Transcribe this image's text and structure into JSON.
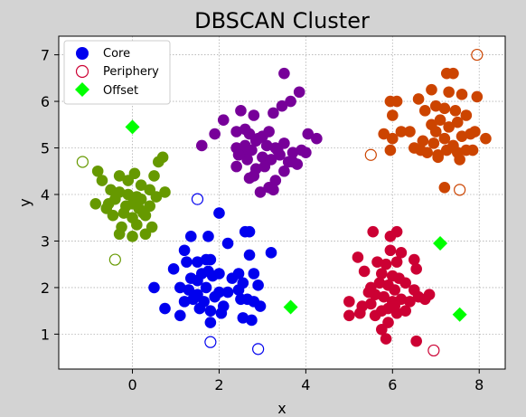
{
  "chart_data": {
    "type": "scatter",
    "title": "DBSCAN Cluster",
    "xlabel": "x",
    "ylabel": "y",
    "xlim": [
      -1.7,
      8.6
    ],
    "ylim": [
      0.25,
      7.4
    ],
    "xticks": [
      "0",
      "2",
      "4",
      "6",
      "8"
    ],
    "xtick_values": [
      0,
      2,
      4,
      6,
      8
    ],
    "yticks": [
      "1",
      "2",
      "3",
      "4",
      "5",
      "6",
      "7"
    ],
    "ytick_values": [
      1,
      2,
      3,
      4,
      5,
      6,
      7
    ],
    "grid": true,
    "legend_position": "top-left",
    "legend": [
      {
        "label": "Core",
        "marker": "filled-circle",
        "color": "#0000ee"
      },
      {
        "label": "Periphery",
        "marker": "hollow-circle",
        "color": "#cc0033"
      },
      {
        "label": "Offset",
        "marker": "diamond",
        "color": "#00ff00"
      }
    ],
    "clusters": [
      {
        "color": "#669900",
        "core": [
          [
            -0.8,
            4.5
          ],
          [
            -0.7,
            4.3
          ],
          [
            -0.5,
            4.1
          ],
          [
            -0.3,
            4.4
          ],
          [
            -0.1,
            4.3
          ],
          [
            0.05,
            4.45
          ],
          [
            0.2,
            4.2
          ],
          [
            0.4,
            4.1
          ],
          [
            0.5,
            4.4
          ],
          [
            0.6,
            4.7
          ],
          [
            0.7,
            4.8
          ],
          [
            0.75,
            4.05
          ],
          [
            -0.85,
            3.8
          ],
          [
            -0.6,
            3.7
          ],
          [
            -0.4,
            3.9
          ],
          [
            -0.2,
            3.6
          ],
          [
            0.0,
            3.8
          ],
          [
            0.15,
            3.7
          ],
          [
            0.3,
            3.55
          ],
          [
            0.45,
            3.3
          ],
          [
            0.3,
            3.15
          ],
          [
            0.0,
            3.1
          ],
          [
            -0.25,
            3.3
          ],
          [
            -0.3,
            3.15
          ],
          [
            -0.55,
            3.8
          ],
          [
            -0.1,
            4.0
          ],
          [
            0.1,
            3.95
          ],
          [
            -0.3,
            4.05
          ],
          [
            0.0,
            3.5
          ],
          [
            0.2,
            3.9
          ],
          [
            0.55,
            3.95
          ],
          [
            0.25,
            3.6
          ],
          [
            -0.15,
            3.75
          ],
          [
            0.4,
            3.75
          ],
          [
            -0.45,
            3.55
          ],
          [
            0.1,
            3.35
          ]
        ],
        "periphery": [
          [
            -1.15,
            4.7
          ],
          [
            -0.4,
            2.6
          ]
        ]
      },
      {
        "color": "#0000ee",
        "core": [
          [
            1.35,
            3.1
          ],
          [
            1.75,
            3.1
          ],
          [
            2.0,
            3.6
          ],
          [
            2.6,
            3.2
          ],
          [
            2.7,
            3.2
          ],
          [
            1.2,
            2.8
          ],
          [
            1.5,
            2.55
          ],
          [
            1.7,
            2.6
          ],
          [
            1.8,
            2.6
          ],
          [
            2.2,
            2.95
          ],
          [
            2.7,
            2.7
          ],
          [
            3.2,
            2.75
          ],
          [
            0.95,
            2.4
          ],
          [
            1.25,
            2.55
          ],
          [
            1.35,
            2.2
          ],
          [
            1.5,
            2.15
          ],
          [
            1.6,
            2.3
          ],
          [
            1.75,
            2.35
          ],
          [
            1.85,
            2.25
          ],
          [
            2.0,
            2.3
          ],
          [
            2.3,
            2.2
          ],
          [
            2.45,
            2.3
          ],
          [
            2.55,
            2.1
          ],
          [
            2.8,
            2.3
          ],
          [
            2.9,
            2.05
          ],
          [
            0.5,
            2.0
          ],
          [
            1.1,
            2.0
          ],
          [
            1.3,
            1.95
          ],
          [
            1.5,
            1.85
          ],
          [
            1.7,
            2.0
          ],
          [
            2.0,
            1.9
          ],
          [
            2.2,
            1.9
          ],
          [
            2.45,
            1.95
          ],
          [
            2.65,
            1.75
          ],
          [
            2.8,
            1.7
          ],
          [
            1.2,
            1.7
          ],
          [
            1.4,
            1.75
          ],
          [
            1.55,
            1.55
          ],
          [
            1.8,
            1.5
          ],
          [
            2.1,
            1.6
          ],
          [
            2.5,
            1.75
          ],
          [
            0.75,
            1.55
          ],
          [
            1.1,
            1.4
          ],
          [
            1.8,
            1.25
          ],
          [
            2.05,
            1.45
          ],
          [
            2.55,
            1.35
          ],
          [
            2.75,
            1.3
          ],
          [
            2.95,
            1.6
          ],
          [
            1.9,
            1.8
          ],
          [
            1.65,
            1.7
          ]
        ],
        "periphery": [
          [
            1.5,
            3.9
          ],
          [
            1.8,
            0.83
          ],
          [
            2.9,
            0.68
          ]
        ]
      },
      {
        "color": "#770099",
        "core": [
          [
            3.5,
            6.6
          ],
          [
            3.65,
            6.0
          ],
          [
            3.85,
            6.2
          ],
          [
            2.5,
            5.8
          ],
          [
            2.8,
            5.7
          ],
          [
            3.25,
            5.75
          ],
          [
            3.45,
            5.9
          ],
          [
            1.6,
            5.05
          ],
          [
            1.9,
            5.3
          ],
          [
            2.1,
            5.6
          ],
          [
            2.4,
            5.35
          ],
          [
            2.6,
            5.4
          ],
          [
            2.7,
            5.3
          ],
          [
            2.9,
            5.2
          ],
          [
            3.1,
            5.05
          ],
          [
            3.3,
            5.0
          ],
          [
            3.5,
            5.1
          ],
          [
            3.7,
            4.9
          ],
          [
            3.9,
            4.95
          ],
          [
            4.05,
            5.3
          ],
          [
            4.25,
            5.2
          ],
          [
            2.4,
            5.0
          ],
          [
            2.55,
            4.9
          ],
          [
            2.75,
            4.95
          ],
          [
            3.0,
            4.8
          ],
          [
            3.2,
            4.75
          ],
          [
            3.4,
            4.85
          ],
          [
            3.6,
            4.7
          ],
          [
            3.8,
            4.65
          ],
          [
            4.0,
            4.9
          ],
          [
            2.4,
            4.6
          ],
          [
            2.65,
            4.75
          ],
          [
            2.85,
            4.55
          ],
          [
            3.05,
            4.6
          ],
          [
            3.3,
            4.3
          ],
          [
            3.5,
            4.5
          ],
          [
            3.7,
            4.7
          ],
          [
            2.7,
            4.35
          ],
          [
            2.8,
            4.4
          ],
          [
            2.95,
            4.05
          ],
          [
            3.15,
            4.15
          ],
          [
            3.25,
            4.1
          ],
          [
            2.45,
            4.85
          ],
          [
            2.6,
            5.05
          ],
          [
            3.0,
            5.25
          ],
          [
            3.15,
            5.35
          ],
          [
            2.85,
            5.15
          ],
          [
            3.35,
            4.95
          ]
        ],
        "periphery": []
      },
      {
        "color": "#cc4400",
        "core": [
          [
            7.25,
            6.6
          ],
          [
            7.4,
            6.6
          ],
          [
            6.9,
            6.25
          ],
          [
            7.3,
            6.2
          ],
          [
            7.6,
            6.15
          ],
          [
            7.95,
            6.1
          ],
          [
            6.6,
            6.05
          ],
          [
            5.95,
            6.0
          ],
          [
            6.1,
            6.0
          ],
          [
            7.0,
            5.9
          ],
          [
            7.2,
            5.85
          ],
          [
            7.45,
            5.8
          ],
          [
            7.7,
            5.7
          ],
          [
            6.75,
            5.8
          ],
          [
            6.0,
            5.7
          ],
          [
            7.1,
            5.6
          ],
          [
            7.5,
            5.55
          ],
          [
            6.9,
            5.5
          ],
          [
            7.3,
            5.45
          ],
          [
            6.2,
            5.35
          ],
          [
            6.4,
            5.35
          ],
          [
            7.8,
            5.3
          ],
          [
            7.9,
            5.35
          ],
          [
            5.8,
            5.3
          ],
          [
            6.0,
            5.2
          ],
          [
            7.2,
            5.2
          ],
          [
            7.6,
            5.25
          ],
          [
            8.15,
            5.2
          ],
          [
            6.95,
            5.1
          ],
          [
            7.4,
            5.05
          ],
          [
            7.7,
            4.95
          ],
          [
            6.5,
            5.0
          ],
          [
            6.65,
            4.95
          ],
          [
            6.8,
            4.9
          ],
          [
            7.05,
            4.85
          ],
          [
            7.25,
            4.95
          ],
          [
            7.5,
            4.9
          ],
          [
            7.85,
            4.95
          ],
          [
            5.95,
            4.95
          ],
          [
            7.05,
            4.8
          ],
          [
            7.55,
            4.75
          ],
          [
            7.2,
            4.15
          ],
          [
            6.7,
            5.15
          ],
          [
            7.0,
            5.35
          ]
        ],
        "periphery": [
          [
            7.95,
            7.0
          ],
          [
            5.5,
            4.85
          ],
          [
            7.55,
            4.1
          ]
        ]
      },
      {
        "color": "#cc0033",
        "core": [
          [
            5.55,
            3.2
          ],
          [
            5.95,
            3.1
          ],
          [
            6.1,
            3.2
          ],
          [
            5.95,
            2.8
          ],
          [
            6.2,
            2.75
          ],
          [
            6.5,
            2.6
          ],
          [
            5.2,
            2.65
          ],
          [
            5.65,
            2.55
          ],
          [
            5.85,
            2.5
          ],
          [
            6.1,
            2.55
          ],
          [
            6.55,
            2.4
          ],
          [
            5.35,
            2.35
          ],
          [
            5.75,
            2.3
          ],
          [
            6.0,
            2.25
          ],
          [
            6.15,
            2.2
          ],
          [
            6.3,
            2.1
          ],
          [
            5.5,
            2.0
          ],
          [
            5.7,
            2.1
          ],
          [
            5.9,
            2.05
          ],
          [
            6.05,
            1.95
          ],
          [
            6.5,
            1.95
          ],
          [
            5.6,
            1.85
          ],
          [
            5.8,
            1.8
          ],
          [
            6.0,
            1.7
          ],
          [
            6.2,
            1.75
          ],
          [
            6.4,
            1.7
          ],
          [
            6.6,
            1.8
          ],
          [
            6.75,
            1.75
          ],
          [
            6.85,
            1.85
          ],
          [
            5.0,
            1.7
          ],
          [
            5.3,
            1.6
          ],
          [
            5.5,
            1.65
          ],
          [
            5.75,
            1.5
          ],
          [
            5.9,
            1.55
          ],
          [
            6.1,
            1.45
          ],
          [
            6.3,
            1.5
          ],
          [
            5.0,
            1.4
          ],
          [
            5.25,
            1.45
          ],
          [
            5.6,
            1.4
          ],
          [
            5.9,
            1.25
          ],
          [
            5.75,
            1.1
          ],
          [
            5.85,
            0.9
          ],
          [
            6.55,
            0.85
          ],
          [
            6.05,
            1.6
          ],
          [
            5.45,
            1.9
          ]
        ],
        "periphery": [
          [
            6.95,
            0.65
          ]
        ]
      }
    ],
    "offset_points": [
      [
        0.0,
        5.45
      ],
      [
        3.65,
        1.58
      ],
      [
        7.1,
        2.95
      ],
      [
        7.55,
        1.42
      ]
    ],
    "offset_color": "#00ff00"
  }
}
